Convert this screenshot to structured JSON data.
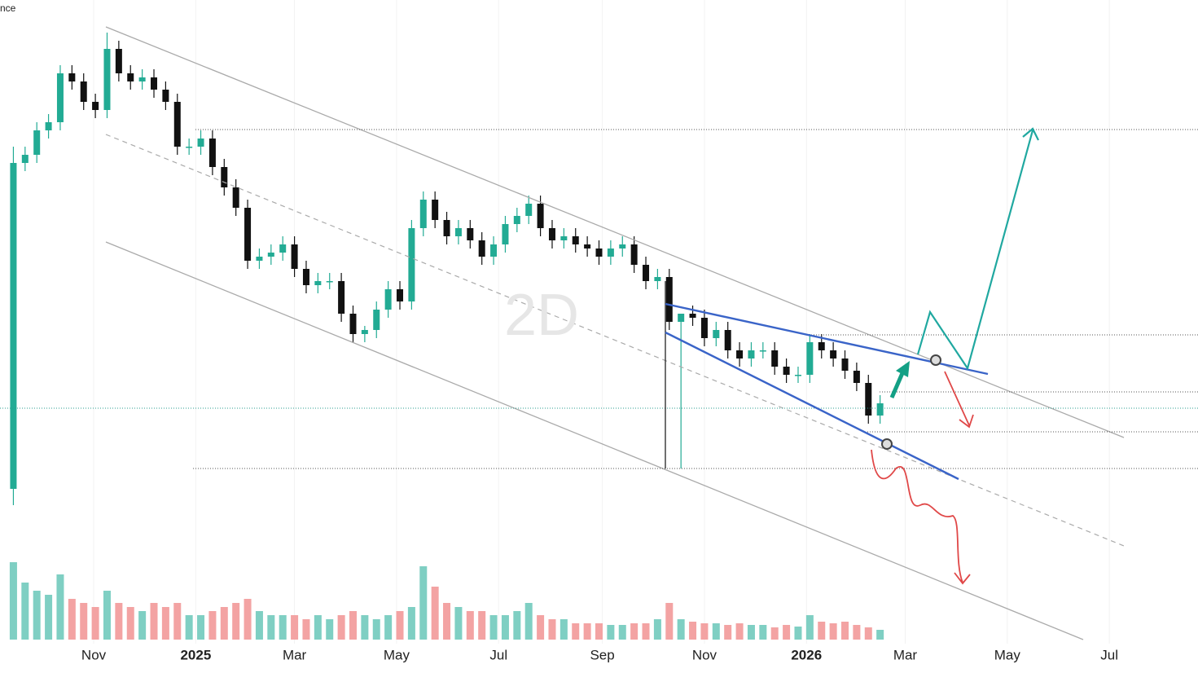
{
  "chart_data": {
    "type": "candlestick",
    "corner_label": "nce",
    "watermark": "2D",
    "xlim": [
      5,
      721
    ],
    "xticks": [
      {
        "value": 61,
        "label": "Nov"
      },
      {
        "value": 122,
        "label": "2025"
      },
      {
        "value": 181,
        "label": "Mar"
      },
      {
        "value": 242,
        "label": "May"
      },
      {
        "value": 303,
        "label": "Jul"
      },
      {
        "value": 365,
        "label": "Sep"
      },
      {
        "value": 426,
        "label": "Nov"
      },
      {
        "value": 487,
        "label": "2026"
      },
      {
        "value": 546,
        "label": "Mar"
      },
      {
        "value": 607,
        "label": "May"
      },
      {
        "value": 668,
        "label": "Jul"
      }
    ],
    "ylim": [
      0,
      790
    ],
    "vlim": [
      0,
      200
    ],
    "up_color": "#22ab94",
    "down_color": "#111111",
    "volume_up_color": "#7fcfc3",
    "volume_down_color": "#f3a3a3",
    "x": [
      13,
      20,
      27,
      34,
      41,
      48,
      55,
      62,
      69,
      76,
      83,
      90,
      97,
      104,
      111,
      118,
      125,
      132,
      139,
      146,
      153,
      160,
      167,
      174,
      181,
      188,
      195,
      202,
      209,
      216,
      223,
      230,
      237,
      244,
      251,
      258,
      265,
      272,
      279,
      286,
      293,
      300,
      307,
      314,
      321,
      328,
      335,
      342,
      349,
      356,
      363,
      370,
      377,
      384,
      391,
      398,
      405,
      412,
      419,
      426,
      433,
      440,
      447,
      454,
      461,
      468,
      475,
      482,
      489,
      496,
      503,
      510,
      517,
      524,
      531
    ],
    "open": [
      190,
      590,
      600,
      630,
      640,
      700,
      690,
      665,
      655,
      730,
      700,
      690,
      695,
      680,
      665,
      610,
      610,
      620,
      585,
      560,
      535,
      470,
      475,
      480,
      490,
      460,
      440,
      445,
      445,
      405,
      380,
      385,
      410,
      435,
      420,
      510,
      545,
      520,
      500,
      510,
      495,
      475,
      490,
      515,
      525,
      540,
      510,
      495,
      500,
      490,
      485,
      475,
      485,
      490,
      465,
      445,
      450,
      395,
      405,
      400,
      375,
      385,
      360,
      350,
      360,
      360,
      340,
      330,
      330,
      370,
      360,
      350,
      335,
      320,
      280
    ],
    "high": [
      610,
      610,
      640,
      650,
      710,
      710,
      700,
      675,
      750,
      740,
      710,
      705,
      705,
      690,
      675,
      620,
      630,
      630,
      595,
      570,
      545,
      485,
      490,
      500,
      500,
      470,
      455,
      455,
      455,
      415,
      390,
      420,
      445,
      445,
      520,
      555,
      555,
      530,
      520,
      520,
      505,
      500,
      525,
      535,
      550,
      550,
      520,
      510,
      510,
      500,
      495,
      495,
      500,
      500,
      475,
      460,
      460,
      405,
      415,
      410,
      395,
      395,
      370,
      370,
      370,
      370,
      350,
      340,
      380,
      380,
      370,
      360,
      345,
      330,
      305
    ],
    "low": [
      170,
      580,
      590,
      620,
      630,
      680,
      655,
      645,
      645,
      690,
      680,
      680,
      670,
      655,
      600,
      600,
      600,
      575,
      550,
      525,
      460,
      460,
      465,
      470,
      450,
      430,
      430,
      435,
      395,
      370,
      370,
      375,
      400,
      410,
      410,
      500,
      510,
      490,
      490,
      485,
      465,
      465,
      480,
      505,
      515,
      500,
      485,
      485,
      480,
      475,
      465,
      465,
      475,
      455,
      435,
      435,
      385,
      215,
      390,
      365,
      365,
      350,
      340,
      340,
      350,
      330,
      320,
      320,
      320,
      350,
      340,
      325,
      310,
      270,
      270
    ],
    "close": [
      590,
      600,
      630,
      640,
      700,
      690,
      665,
      655,
      730,
      700,
      690,
      695,
      680,
      665,
      610,
      610,
      620,
      585,
      560,
      535,
      470,
      475,
      480,
      490,
      460,
      440,
      445,
      445,
      405,
      380,
      385,
      410,
      435,
      420,
      510,
      545,
      520,
      500,
      510,
      495,
      475,
      490,
      515,
      525,
      540,
      510,
      495,
      500,
      490,
      485,
      475,
      485,
      490,
      465,
      445,
      450,
      395,
      405,
      400,
      375,
      385,
      360,
      350,
      360,
      360,
      340,
      330,
      330,
      370,
      360,
      350,
      335,
      320,
      280,
      295
    ],
    "volume": [
      95,
      70,
      60,
      55,
      80,
      50,
      45,
      40,
      60,
      45,
      40,
      35,
      45,
      40,
      45,
      30,
      30,
      35,
      40,
      45,
      50,
      35,
      30,
      30,
      30,
      25,
      30,
      25,
      30,
      35,
      30,
      25,
      30,
      35,
      40,
      90,
      65,
      45,
      40,
      35,
      35,
      30,
      30,
      35,
      45,
      30,
      25,
      25,
      20,
      20,
      20,
      18,
      18,
      20,
      20,
      25,
      45,
      25,
      22,
      20,
      20,
      18,
      20,
      18,
      18,
      15,
      18,
      16,
      30,
      22,
      20,
      22,
      18,
      15,
      12
    ]
  }
}
